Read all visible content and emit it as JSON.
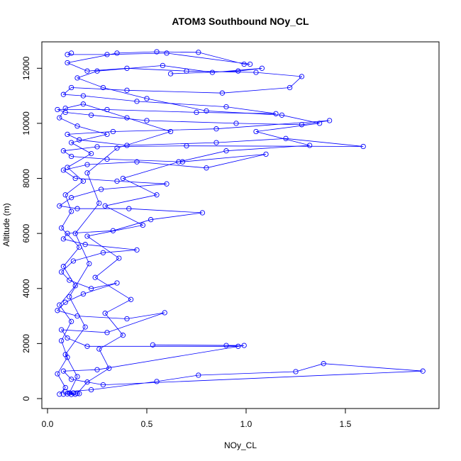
{
  "chart_data": {
    "type": "line",
    "title": "ATOM3 Southbound NOy_CL",
    "xlabel": "NOy_CL",
    "ylabel": "Altitude (m)",
    "xlim": [
      0,
      1.9
    ],
    "ylim": [
      0,
      12600
    ],
    "x_ticks": [
      0.0,
      0.5,
      1.0,
      1.5
    ],
    "x_tick_labels": [
      "0.0",
      "0.5",
      "1.0",
      "1.5"
    ],
    "y_ticks": [
      0,
      2000,
      4000,
      6000,
      8000,
      10000,
      12000
    ],
    "y_tick_labels": [
      "0",
      "2000",
      "4000",
      "6000",
      "8000",
      "10000",
      "12000"
    ],
    "grid": false,
    "legend": "none",
    "markers": "open-circle",
    "series": [
      {
        "color": "#0000ff",
        "points": [
          [
            0.12,
            150
          ],
          [
            0.14,
            160
          ],
          [
            0.1,
            170
          ],
          [
            0.16,
            180
          ],
          [
            0.08,
            160
          ],
          [
            0.13,
            200
          ],
          [
            0.09,
            250
          ],
          [
            0.22,
            320
          ],
          [
            0.55,
            620
          ],
          [
            0.76,
            850
          ],
          [
            1.25,
            980
          ],
          [
            1.39,
            1270
          ],
          [
            1.89,
            1000
          ],
          [
            0.28,
            500
          ],
          [
            0.12,
            700
          ],
          [
            0.08,
            1000
          ],
          [
            0.25,
            1050
          ],
          [
            0.99,
            1930
          ],
          [
            0.53,
            1950
          ],
          [
            0.9,
            1930
          ],
          [
            0.96,
            1900
          ],
          [
            0.2,
            1900
          ],
          [
            0.1,
            2200
          ],
          [
            0.07,
            2500
          ],
          [
            0.3,
            2400
          ],
          [
            0.59,
            3120
          ],
          [
            0.4,
            2900
          ],
          [
            0.15,
            3000
          ],
          [
            0.05,
            3200
          ],
          [
            0.09,
            3500
          ],
          [
            0.18,
            3800
          ],
          [
            0.35,
            4200
          ],
          [
            0.22,
            4000
          ],
          [
            0.11,
            4300
          ],
          [
            0.07,
            4600
          ],
          [
            0.13,
            5000
          ],
          [
            0.28,
            5300
          ],
          [
            0.45,
            5400
          ],
          [
            0.19,
            5600
          ],
          [
            0.08,
            5800
          ],
          [
            0.1,
            6000
          ],
          [
            0.33,
            6100
          ],
          [
            0.52,
            6500
          ],
          [
            0.78,
            6750
          ],
          [
            0.41,
            6900
          ],
          [
            0.15,
            6900
          ],
          [
            0.06,
            7000
          ],
          [
            0.12,
            7300
          ],
          [
            0.27,
            7600
          ],
          [
            0.6,
            7800
          ],
          [
            0.35,
            7900
          ],
          [
            0.14,
            8000
          ],
          [
            0.08,
            8300
          ],
          [
            0.2,
            8500
          ],
          [
            0.45,
            8600
          ],
          [
            0.8,
            8380
          ],
          [
            1.1,
            8880
          ],
          [
            0.68,
            8600
          ],
          [
            0.3,
            8700
          ],
          [
            0.12,
            8800
          ],
          [
            0.08,
            9000
          ],
          [
            0.25,
            9150
          ],
          [
            0.7,
            9180
          ],
          [
            1.59,
            9160
          ],
          [
            1.2,
            9450
          ],
          [
            0.85,
            9300
          ],
          [
            0.4,
            9200
          ],
          [
            0.16,
            9400
          ],
          [
            0.1,
            9600
          ],
          [
            0.33,
            9700
          ],
          [
            0.85,
            9800
          ],
          [
            1.42,
            10100
          ],
          [
            1.28,
            9950
          ],
          [
            0.95,
            10000
          ],
          [
            0.5,
            10100
          ],
          [
            0.22,
            10300
          ],
          [
            0.09,
            10400
          ],
          [
            0.05,
            10500
          ],
          [
            0.3,
            10500
          ],
          [
            0.75,
            10400
          ],
          [
            1.15,
            10350
          ],
          [
            0.9,
            10600
          ],
          [
            0.45,
            10800
          ],
          [
            0.18,
            11000
          ],
          [
            0.08,
            11050
          ],
          [
            0.12,
            11300
          ],
          [
            0.4,
            11200
          ],
          [
            0.88,
            11100
          ],
          [
            1.22,
            11300
          ],
          [
            1.28,
            11700
          ],
          [
            1.05,
            11850
          ],
          [
            0.7,
            11900
          ],
          [
            0.4,
            12000
          ],
          [
            0.2,
            11900
          ],
          [
            0.1,
            12200
          ],
          [
            0.35,
            12550
          ],
          [
            0.55,
            12600
          ],
          [
            0.76,
            12580
          ],
          [
            0.99,
            12150
          ],
          [
            1.02,
            12150
          ],
          [
            0.6,
            12550
          ],
          [
            0.3,
            12500
          ],
          [
            0.1,
            12500
          ],
          [
            0.12,
            12550
          ]
        ]
      },
      {
        "color": "#0000ff",
        "points": [
          [
            0.06,
            160
          ],
          [
            0.09,
            400
          ],
          [
            0.05,
            900
          ],
          [
            0.1,
            1500
          ],
          [
            0.07,
            2100
          ],
          [
            0.12,
            2800
          ],
          [
            0.06,
            3400
          ],
          [
            0.14,
            4100
          ],
          [
            0.08,
            4800
          ],
          [
            0.16,
            5500
          ],
          [
            0.07,
            6200
          ],
          [
            0.12,
            6800
          ],
          [
            0.09,
            7400
          ],
          [
            0.18,
            7900
          ],
          [
            0.1,
            8400
          ],
          [
            0.22,
            8900
          ],
          [
            0.12,
            9300
          ],
          [
            0.3,
            9600
          ],
          [
            0.15,
            9900
          ],
          [
            0.06,
            10200
          ],
          [
            0.09,
            10550
          ],
          [
            0.18,
            10700
          ],
          [
            0.4,
            10200
          ],
          [
            0.62,
            9700
          ],
          [
            0.35,
            9100
          ],
          [
            0.2,
            8200
          ],
          [
            0.26,
            7100
          ],
          [
            0.14,
            6000
          ],
          [
            0.21,
            4900
          ],
          [
            0.11,
            3700
          ],
          [
            0.19,
            2600
          ],
          [
            0.09,
            1600
          ],
          [
            0.15,
            800
          ],
          [
            0.11,
            200
          ]
        ]
      },
      {
        "color": "#0000ff",
        "points": [
          [
            0.15,
            190
          ],
          [
            0.2,
            600
          ],
          [
            0.31,
            1100
          ],
          [
            0.26,
            1800
          ],
          [
            0.38,
            2300
          ],
          [
            0.29,
            3100
          ],
          [
            0.42,
            3600
          ],
          [
            0.24,
            4400
          ],
          [
            0.36,
            5100
          ],
          [
            0.2,
            5900
          ],
          [
            0.48,
            6300
          ],
          [
            0.29,
            7000
          ],
          [
            0.55,
            7400
          ],
          [
            0.38,
            8000
          ],
          [
            0.66,
            8600
          ],
          [
            0.9,
            9000
          ],
          [
            1.32,
            9200
          ],
          [
            1.05,
            9700
          ],
          [
            1.37,
            10000
          ],
          [
            1.18,
            10300
          ],
          [
            0.8,
            10450
          ],
          [
            0.5,
            10900
          ],
          [
            0.28,
            11300
          ],
          [
            0.15,
            11650
          ],
          [
            0.25,
            11900
          ],
          [
            0.58,
            12100
          ],
          [
            0.83,
            11850
          ],
          [
            1.08,
            12000
          ],
          [
            0.96,
            11900
          ],
          [
            0.62,
            11800
          ]
        ]
      }
    ]
  }
}
